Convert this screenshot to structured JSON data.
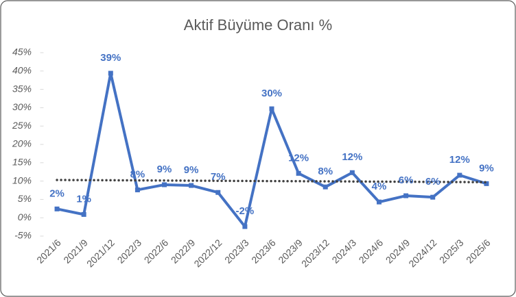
{
  "chart_data": {
    "type": "line",
    "title": "Aktif Büyüme Oranı %",
    "categories": [
      "2021/6",
      "2021/9",
      "2021/12",
      "2022/3",
      "2022/6",
      "2022/9",
      "2022/12",
      "2023/3",
      "2023/6",
      "2023/9",
      "2023/12",
      "2024/3",
      "2024/6",
      "2024/9",
      "2024/12",
      "2025/3",
      "2025/6"
    ],
    "series": [
      {
        "color": "#4472c4",
        "values": [
          2.4,
          0.9,
          39.4,
          7.6,
          9.0,
          8.8,
          6.9,
          -2.4,
          29.7,
          12.1,
          8.4,
          12.3,
          4.3,
          6.0,
          5.6,
          11.6,
          9.3
        ],
        "value_labels": [
          "2%",
          "1%",
          "39%",
          "8%",
          "9%",
          "9%",
          "7%",
          "-2%",
          "30%",
          "12%",
          "8%",
          "12%",
          "4%",
          "6%",
          "6%",
          "12%",
          "9%"
        ]
      }
    ],
    "trendline": {
      "values": [
        10.3,
        9.7
      ],
      "color": "#404040"
    },
    "ylim": [
      -5,
      45
    ],
    "yticks": [
      {
        "value": -5,
        "label": "-5%"
      },
      {
        "value": 0,
        "label": "0%"
      },
      {
        "value": 5,
        "label": "5%"
      },
      {
        "value": 10,
        "label": "10%"
      },
      {
        "value": 15,
        "label": "15%"
      },
      {
        "value": 20,
        "label": "20%"
      },
      {
        "value": 25,
        "label": "25%"
      },
      {
        "value": 30,
        "label": "30%"
      },
      {
        "value": 35,
        "label": "35%"
      },
      {
        "value": 40,
        "label": "40%"
      },
      {
        "value": 45,
        "label": "45%"
      }
    ],
    "grid": false
  }
}
